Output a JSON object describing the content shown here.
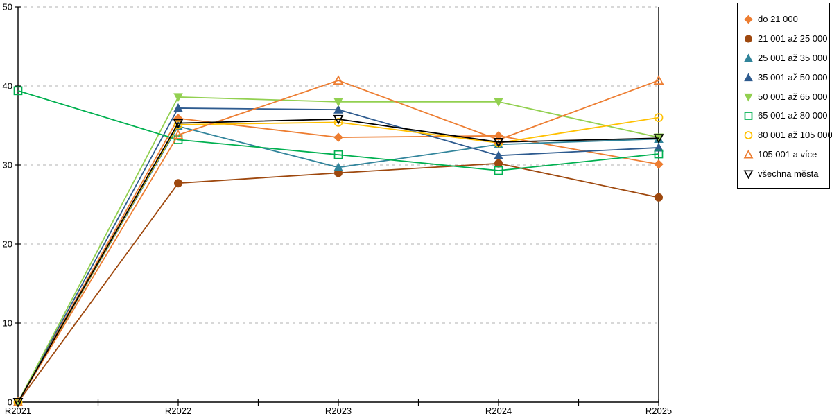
{
  "chart_data": {
    "type": "line",
    "title": "",
    "xlabel": "",
    "ylabel": "",
    "categories": [
      "R2021",
      "R2022",
      "R2023",
      "R2024",
      "R2025"
    ],
    "series": [
      {
        "name": "do 21 000",
        "color": "#ED7D31",
        "marker": "diamond",
        "filled": true,
        "values": [
          0,
          35.9,
          33.5,
          33.7,
          30.1
        ]
      },
      {
        "name": "21 001 až 25 000",
        "color": "#9E480E",
        "marker": "circle",
        "filled": true,
        "values": [
          0,
          27.7,
          29.0,
          30.2,
          25.9
        ]
      },
      {
        "name": "25 001 až 35 000",
        "color": "#31849B",
        "marker": "triangle-up",
        "filled": true,
        "values": [
          0,
          34.9,
          29.7,
          32.6,
          33.3
        ]
      },
      {
        "name": "35 001 až 50 000",
        "color": "#2E5B8F",
        "marker": "triangle-up",
        "filled": true,
        "values": [
          0,
          37.2,
          37.0,
          31.2,
          32.2
        ]
      },
      {
        "name": "50 001 až 65 000",
        "color": "#92D050",
        "marker": "triangle-down",
        "filled": true,
        "values": [
          0,
          38.6,
          38.0,
          38.0,
          33.5
        ]
      },
      {
        "name": "65 001 až 80 000",
        "color": "#00B050",
        "marker": "square",
        "filled": false,
        "values": [
          39.4,
          33.2,
          31.3,
          29.3,
          31.4
        ]
      },
      {
        "name": "80 001 až 105 000",
        "color": "#FFC000",
        "marker": "circle",
        "filled": false,
        "values": [
          0,
          35.1,
          35.4,
          32.8,
          36.0
        ]
      },
      {
        "name": "105 001 a více",
        "color": "#ED7D31",
        "marker": "triangle-up",
        "filled": false,
        "values": [
          0,
          33.8,
          40.7,
          33.2,
          40.7
        ]
      },
      {
        "name": "všechna města",
        "color": "#000000",
        "marker": "triangle-down",
        "filled": false,
        "values": [
          0,
          35.3,
          35.8,
          32.9,
          33.4
        ]
      }
    ],
    "ylim": [
      0,
      50
    ],
    "yticks": [
      0,
      10,
      20,
      30,
      40,
      50
    ],
    "grid": "horizontal dashed gridlines at each y tick",
    "legend_position": "right",
    "colors": {
      "axis": "#000000",
      "gridline": "#b0b0b0",
      "background": "#ffffff"
    }
  }
}
